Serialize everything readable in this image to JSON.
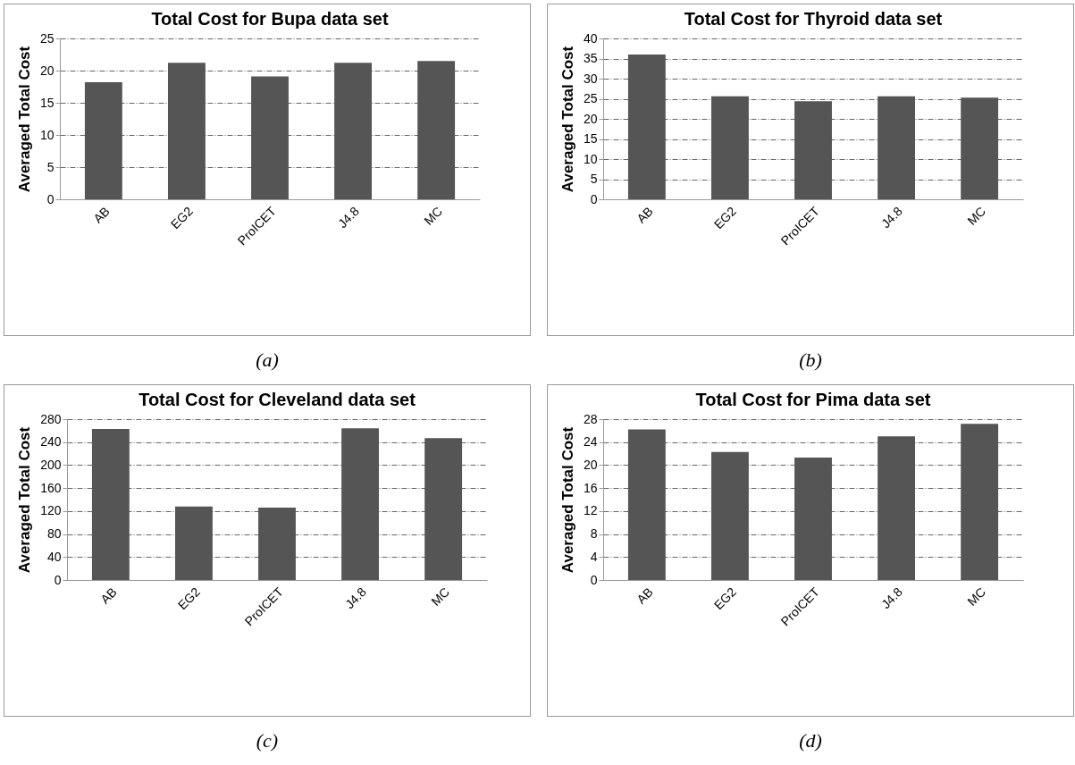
{
  "chart_data": [
    {
      "type": "bar",
      "title": "Total Cost for Bupa data set",
      "ylabel": "Averaged Total Cost",
      "categories": [
        "AB",
        "EG2",
        "ProICET",
        "J4.8",
        "MC"
      ],
      "values": [
        18.2,
        21.2,
        19.1,
        21.2,
        21.5
      ],
      "color": "#555555",
      "ylim": [
        0,
        25
      ],
      "yticks": [
        0,
        5,
        10,
        15,
        20,
        25
      ],
      "grid": "y",
      "annotations": [
        "(a)"
      ]
    },
    {
      "type": "bar",
      "title": "Total Cost for Thyroid data set",
      "ylabel": "Averaged Total Cost",
      "categories": [
        "AB",
        "EG2",
        "ProICET",
        "J4.8",
        "MC"
      ],
      "values": [
        36,
        25.6,
        24.4,
        25.6,
        25.3
      ],
      "color": "#555555",
      "ylim": [
        0,
        40
      ],
      "yticks": [
        0,
        5,
        10,
        15,
        20,
        25,
        30,
        35,
        40
      ],
      "grid": "y",
      "annotations": [
        "(b)"
      ]
    },
    {
      "type": "bar",
      "title": "Total Cost for Cleveland data set",
      "ylabel": "Averaged Total Cost",
      "categories": [
        "AB",
        "EG2",
        "ProICET",
        "J4.8",
        "MC"
      ],
      "values": [
        263,
        128,
        126,
        264,
        247
      ],
      "color": "#555555",
      "ylim": [
        0,
        280
      ],
      "yticks": [
        0,
        40,
        80,
        120,
        160,
        200,
        240,
        280
      ],
      "grid": "y",
      "annotations": [
        "(c)"
      ]
    },
    {
      "type": "bar",
      "title": "Total Cost for Pima data set",
      "ylabel": "Averaged Total Cost",
      "categories": [
        "AB",
        "EG2",
        "ProICET",
        "J4.8",
        "MC"
      ],
      "values": [
        26.2,
        22.3,
        21.3,
        25.0,
        27.2
      ],
      "color": "#555555",
      "ylim": [
        0,
        28
      ],
      "yticks": [
        0,
        4,
        8,
        12,
        16,
        20,
        24,
        28
      ],
      "grid": "y",
      "annotations": [
        "(d)"
      ]
    }
  ]
}
